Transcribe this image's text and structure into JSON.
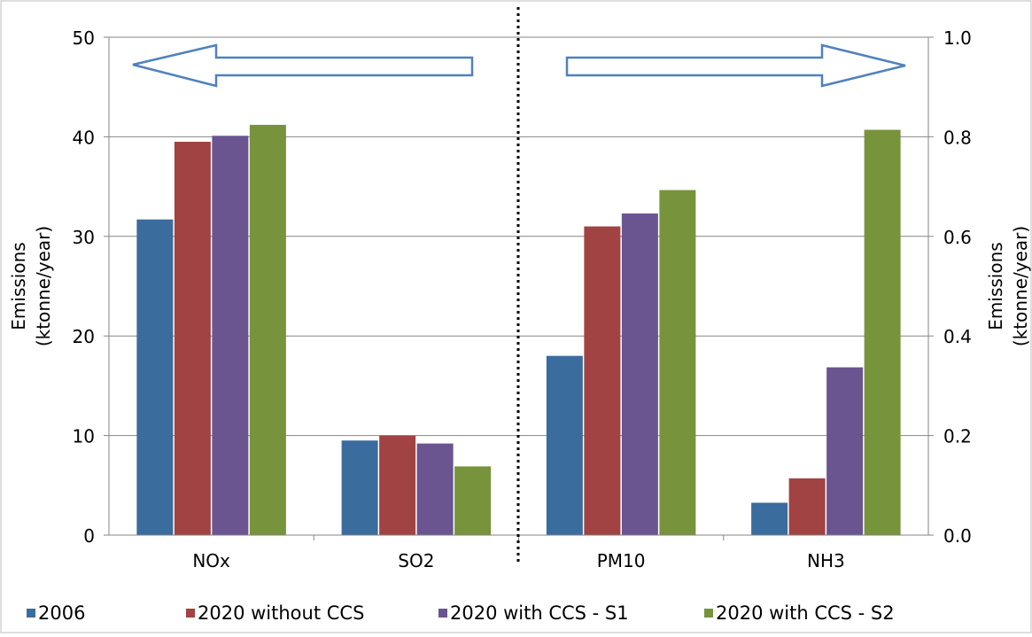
{
  "chart_data": {
    "type": "bar",
    "categories": [
      "NOx",
      "SO2",
      "PM10",
      "NH3"
    ],
    "series": [
      {
        "name": "2006",
        "color": "#3b6c9e",
        "values": [
          31.7,
          9.5,
          0.36,
          0.065
        ]
      },
      {
        "name": "2020 without CCS",
        "color": "#a04342",
        "values": [
          39.5,
          10.0,
          0.62,
          0.114
        ]
      },
      {
        "name": "2020 with CCS - S1",
        "color": "#6a5590",
        "values": [
          40.1,
          9.2,
          0.646,
          0.337
        ]
      },
      {
        "name": "2020 with CCS - S2",
        "color": "#77933c",
        "values": [
          41.2,
          6.9,
          0.693,
          0.814
        ]
      }
    ],
    "axis_for_category": [
      "left",
      "left",
      "right",
      "right"
    ],
    "left_axis": {
      "label_line1": "Emissions",
      "label_line2": "(ktonne/year)",
      "ylim": [
        0,
        50
      ],
      "ticks": [
        "0",
        "10",
        "20",
        "30",
        "40",
        "50"
      ]
    },
    "right_axis": {
      "label_line1": "Emissions",
      "label_line2": "(ktonne/year)",
      "ylim": [
        0,
        1.0
      ],
      "ticks": [
        "0.0",
        "0.2",
        "0.4",
        "0.6",
        "0.8",
        "1.0"
      ]
    },
    "grid": true,
    "legend_position": "bottom",
    "divider": "dotted line between SO2 and PM10",
    "arrows": [
      "left arrow over NOx and SO2",
      "right arrow over PM10 and NH3"
    ],
    "arrow_color": "#4f81bd"
  }
}
